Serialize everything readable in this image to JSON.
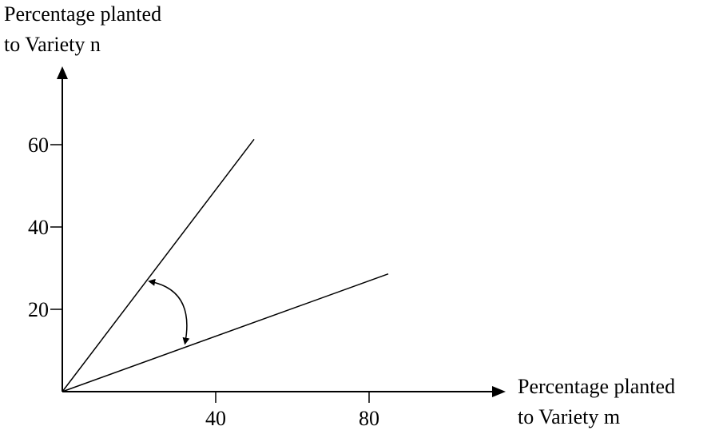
{
  "chart_data": {
    "type": "line",
    "title": "",
    "xlabel": [
      "Percentage planted",
      "to Variety m"
    ],
    "ylabel": [
      "Percentage planted",
      "to Variety n"
    ],
    "xlim": [
      0,
      113
    ],
    "ylim": [
      0,
      76
    ],
    "x_ticks": [
      {
        "value": 40,
        "label": "40"
      },
      {
        "value": 80,
        "label": "80"
      }
    ],
    "y_ticks": [
      {
        "value": 20,
        "label": "20"
      },
      {
        "value": 40,
        "label": "40"
      },
      {
        "value": 60,
        "label": "60"
      }
    ],
    "series": [
      {
        "points": [
          [
            0,
            0
          ],
          [
            50,
            61.3
          ]
        ]
      },
      {
        "points": [
          [
            0,
            0
          ],
          [
            85,
            28.6
          ]
        ]
      }
    ],
    "annotation": {
      "type": "double-headed-curved-arrow",
      "from_point": [
        22.7,
        26.8
      ],
      "to_point": [
        32,
        11.7
      ]
    },
    "grid": false,
    "legend": "none"
  }
}
